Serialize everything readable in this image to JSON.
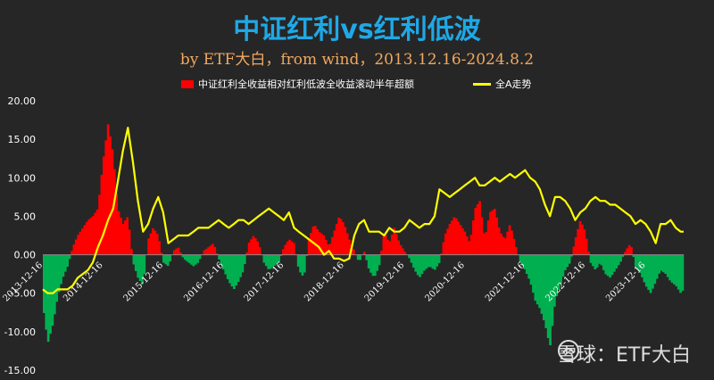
{
  "chart_data": {
    "type": "bar+line",
    "title": "中证红利vs红利低波",
    "subtitle": "by ETF大白，from wind，2013.12.16-2024.8.2",
    "legend": [
      "中证红利全收益相对红利低波全收益滚动半年超额",
      "全A走势"
    ],
    "ylim": [
      -15,
      20
    ],
    "yticks": [
      "20.00",
      "15.00",
      "10.00",
      "5.00",
      "0.00",
      "-5.00",
      "-10.00",
      "-15.00"
    ],
    "x_start": "2013-12-16",
    "x_end": "2024-08-02",
    "x_ticks": [
      "2013-12-16",
      "2014-12-16",
      "2015-12-16",
      "2016-12-16",
      "2017-12-16",
      "2018-12-16",
      "2019-12-16",
      "2020-12-16",
      "2021-12-16",
      "2022-12-16",
      "2023-12-16"
    ],
    "excess_series": {
      "name": "中证红利全收益相对红利低波全收益滚动半年超额",
      "points": [
        [
          "2013-12-16",
          -6.5
        ],
        [
          "2014-01-15",
          -11.5
        ],
        [
          "2014-02-15",
          -9.0
        ],
        [
          "2014-03-15",
          -5.5
        ],
        [
          "2014-04-15",
          -3.0
        ],
        [
          "2014-05-15",
          -1.5
        ],
        [
          "2014-06-15",
          1.0
        ],
        [
          "2014-07-15",
          2.5
        ],
        [
          "2014-08-15",
          3.5
        ],
        [
          "2014-09-15",
          4.5
        ],
        [
          "2014-10-15",
          5.0
        ],
        [
          "2014-11-15",
          6.0
        ],
        [
          "2014-12-15",
          12.0
        ],
        [
          "2015-01-15",
          17.0
        ],
        [
          "2015-02-15",
          13.0
        ],
        [
          "2015-03-15",
          6.0
        ],
        [
          "2015-04-15",
          4.0
        ],
        [
          "2015-05-15",
          5.0
        ],
        [
          "2015-06-15",
          -1.0
        ],
        [
          "2015-07-15",
          -3.0
        ],
        [
          "2015-08-15",
          -4.0
        ],
        [
          "2015-09-15",
          2.0
        ],
        [
          "2015-10-15",
          3.5
        ],
        [
          "2015-11-15",
          2.5
        ],
        [
          "2015-12-15",
          -1.0
        ],
        [
          "2016-01-15",
          -1.5
        ],
        [
          "2016-02-15",
          0.5
        ],
        [
          "2016-03-15",
          1.0
        ],
        [
          "2016-04-15",
          -0.5
        ],
        [
          "2016-05-15",
          -1.0
        ],
        [
          "2016-06-15",
          -1.5
        ],
        [
          "2016-07-15",
          -1.0
        ],
        [
          "2016-08-15",
          0.5
        ],
        [
          "2016-09-15",
          1.0
        ],
        [
          "2016-10-15",
          1.5
        ],
        [
          "2016-11-15",
          -0.5
        ],
        [
          "2016-12-15",
          -2.0
        ],
        [
          "2017-01-15",
          -3.5
        ],
        [
          "2017-02-15",
          -4.5
        ],
        [
          "2017-03-15",
          -3.5
        ],
        [
          "2017-04-15",
          -2.0
        ],
        [
          "2017-05-15",
          1.5
        ],
        [
          "2017-06-15",
          2.5
        ],
        [
          "2017-07-15",
          1.5
        ],
        [
          "2017-08-15",
          -1.0
        ],
        [
          "2017-09-15",
          -2.0
        ],
        [
          "2017-10-15",
          -1.5
        ],
        [
          "2017-11-15",
          -1.0
        ],
        [
          "2017-12-15",
          1.0
        ],
        [
          "2018-01-15",
          2.0
        ],
        [
          "2018-02-15",
          1.5
        ],
        [
          "2018-03-15",
          -2.0
        ],
        [
          "2018-04-15",
          -3.0
        ],
        [
          "2018-05-15",
          2.0
        ],
        [
          "2018-06-15",
          4.0
        ],
        [
          "2018-07-15",
          3.0
        ],
        [
          "2018-08-15",
          2.5
        ],
        [
          "2018-09-15",
          1.0
        ],
        [
          "2018-10-15",
          3.0
        ],
        [
          "2018-11-15",
          5.0
        ],
        [
          "2018-12-15",
          4.0
        ],
        [
          "2019-01-15",
          2.0
        ],
        [
          "2019-02-15",
          0.5
        ],
        [
          "2019-03-15",
          -1.0
        ],
        [
          "2019-04-15",
          0.5
        ],
        [
          "2019-05-15",
          -2.0
        ],
        [
          "2019-06-15",
          -3.0
        ],
        [
          "2019-07-15",
          -1.5
        ],
        [
          "2019-08-15",
          3.0
        ],
        [
          "2019-09-15",
          1.5
        ],
        [
          "2019-10-15",
          3.5
        ],
        [
          "2019-11-15",
          1.5
        ],
        [
          "2019-12-15",
          0.5
        ],
        [
          "2020-01-15",
          -0.5
        ],
        [
          "2020-02-15",
          -2.0
        ],
        [
          "2020-03-15",
          -3.0
        ],
        [
          "2020-04-15",
          -2.0
        ],
        [
          "2020-05-15",
          -1.5
        ],
        [
          "2020-06-15",
          -2.0
        ],
        [
          "2020-07-15",
          -1.0
        ],
        [
          "2020-08-15",
          2.5
        ],
        [
          "2020-09-15",
          4.0
        ],
        [
          "2020-10-15",
          5.0
        ],
        [
          "2020-11-15",
          4.0
        ],
        [
          "2020-12-15",
          3.0
        ],
        [
          "2021-01-15",
          1.5
        ],
        [
          "2021-02-15",
          6.0
        ],
        [
          "2021-03-15",
          7.0
        ],
        [
          "2021-04-15",
          2.0
        ],
        [
          "2021-05-15",
          5.5
        ],
        [
          "2021-06-15",
          6.0
        ],
        [
          "2021-07-15",
          3.0
        ],
        [
          "2021-08-15",
          2.0
        ],
        [
          "2021-09-15",
          4.0
        ],
        [
          "2021-10-15",
          1.5
        ],
        [
          "2021-11-15",
          -1.0
        ],
        [
          "2021-12-15",
          -2.0
        ],
        [
          "2022-01-15",
          -3.5
        ],
        [
          "2022-02-15",
          -6.0
        ],
        [
          "2022-03-15",
          -7.0
        ],
        [
          "2022-04-15",
          -9.0
        ],
        [
          "2022-05-15",
          -12.0
        ],
        [
          "2022-06-15",
          -6.0
        ],
        [
          "2022-07-15",
          -4.0
        ],
        [
          "2022-08-15",
          -2.0
        ],
        [
          "2022-09-15",
          -1.0
        ],
        [
          "2022-10-15",
          2.0
        ],
        [
          "2022-11-15",
          4.5
        ],
        [
          "2022-12-15",
          3.0
        ],
        [
          "2023-01-15",
          -1.0
        ],
        [
          "2023-02-15",
          -2.0
        ],
        [
          "2023-03-15",
          -1.0
        ],
        [
          "2023-04-15",
          -2.5
        ],
        [
          "2023-05-15",
          -3.0
        ],
        [
          "2023-06-15",
          -2.0
        ],
        [
          "2023-07-15",
          -1.0
        ],
        [
          "2023-08-15",
          0.5
        ],
        [
          "2023-09-15",
          1.5
        ],
        [
          "2023-10-15",
          -1.5
        ],
        [
          "2023-11-15",
          -2.5
        ],
        [
          "2023-12-15",
          -4.0
        ],
        [
          "2024-01-15",
          -5.0
        ],
        [
          "2024-02-15",
          -3.5
        ],
        [
          "2024-03-15",
          -2.0
        ],
        [
          "2024-04-15",
          -2.5
        ],
        [
          "2024-05-15",
          -3.5
        ],
        [
          "2024-06-15",
          -4.0
        ],
        [
          "2024-07-15",
          -5.0
        ],
        [
          "2024-08-02",
          -4.5
        ]
      ]
    },
    "index_series": {
      "name": "全A走势",
      "points": [
        [
          "2013-12-16",
          -4.5
        ],
        [
          "2014-01-15",
          -5.0
        ],
        [
          "2014-02-15",
          -5.0
        ],
        [
          "2014-03-15",
          -4.5
        ],
        [
          "2014-04-15",
          -4.5
        ],
        [
          "2014-05-15",
          -4.5
        ],
        [
          "2014-06-15",
          -4.0
        ],
        [
          "2014-07-15",
          -3.0
        ],
        [
          "2014-08-15",
          -2.5
        ],
        [
          "2014-09-15",
          -2.0
        ],
        [
          "2014-10-15",
          -1.0
        ],
        [
          "2014-11-15",
          1.0
        ],
        [
          "2014-12-15",
          2.5
        ],
        [
          "2015-01-15",
          4.5
        ],
        [
          "2015-02-15",
          6.0
        ],
        [
          "2015-03-15",
          9.5
        ],
        [
          "2015-04-15",
          13.5
        ],
        [
          "2015-05-15",
          16.5
        ],
        [
          "2015-06-15",
          12.0
        ],
        [
          "2015-07-15",
          7.0
        ],
        [
          "2015-08-15",
          3.0
        ],
        [
          "2015-09-15",
          4.0
        ],
        [
          "2015-10-15",
          6.0
        ],
        [
          "2015-11-15",
          7.5
        ],
        [
          "2015-12-15",
          5.5
        ],
        [
          "2016-01-15",
          1.5
        ],
        [
          "2016-02-15",
          2.0
        ],
        [
          "2016-03-15",
          2.5
        ],
        [
          "2016-04-15",
          2.5
        ],
        [
          "2016-05-15",
          2.5
        ],
        [
          "2016-06-15",
          3.0
        ],
        [
          "2016-07-15",
          3.5
        ],
        [
          "2016-08-15",
          3.5
        ],
        [
          "2016-09-15",
          3.5
        ],
        [
          "2016-10-15",
          4.0
        ],
        [
          "2016-11-15",
          4.5
        ],
        [
          "2016-12-15",
          4.0
        ],
        [
          "2017-01-15",
          3.5
        ],
        [
          "2017-02-15",
          4.0
        ],
        [
          "2017-03-15",
          4.5
        ],
        [
          "2017-04-15",
          4.5
        ],
        [
          "2017-05-15",
          4.0
        ],
        [
          "2017-06-15",
          4.5
        ],
        [
          "2017-07-15",
          5.0
        ],
        [
          "2017-08-15",
          5.5
        ],
        [
          "2017-09-15",
          6.0
        ],
        [
          "2017-10-15",
          5.5
        ],
        [
          "2017-11-15",
          5.0
        ],
        [
          "2017-12-15",
          4.5
        ],
        [
          "2018-01-15",
          5.5
        ],
        [
          "2018-02-15",
          3.5
        ],
        [
          "2018-03-15",
          3.0
        ],
        [
          "2018-04-15",
          2.5
        ],
        [
          "2018-05-15",
          2.0
        ],
        [
          "2018-06-15",
          1.5
        ],
        [
          "2018-07-15",
          1.0
        ],
        [
          "2018-08-15",
          0.0
        ],
        [
          "2018-09-15",
          0.5
        ],
        [
          "2018-10-15",
          -0.5
        ],
        [
          "2018-11-15",
          -0.5
        ],
        [
          "2018-12-15",
          -0.8
        ],
        [
          "2019-01-15",
          -0.5
        ],
        [
          "2019-02-15",
          2.5
        ],
        [
          "2019-03-15",
          4.0
        ],
        [
          "2019-04-15",
          4.5
        ],
        [
          "2019-05-15",
          3.0
        ],
        [
          "2019-06-15",
          3.0
        ],
        [
          "2019-07-15",
          3.0
        ],
        [
          "2019-08-15",
          2.5
        ],
        [
          "2019-09-15",
          3.5
        ],
        [
          "2019-10-15",
          3.0
        ],
        [
          "2019-11-15",
          3.0
        ],
        [
          "2019-12-15",
          3.5
        ],
        [
          "2020-01-15",
          4.5
        ],
        [
          "2020-02-15",
          4.0
        ],
        [
          "2020-03-15",
          3.5
        ],
        [
          "2020-04-15",
          4.0
        ],
        [
          "2020-05-15",
          4.0
        ],
        [
          "2020-06-15",
          5.0
        ],
        [
          "2020-07-15",
          8.5
        ],
        [
          "2020-08-15",
          8.0
        ],
        [
          "2020-09-15",
          7.5
        ],
        [
          "2020-10-15",
          8.0
        ],
        [
          "2020-11-15",
          8.5
        ],
        [
          "2020-12-15",
          9.0
        ],
        [
          "2021-01-15",
          9.5
        ],
        [
          "2021-02-15",
          10.0
        ],
        [
          "2021-03-15",
          9.0
        ],
        [
          "2021-04-15",
          9.0
        ],
        [
          "2021-05-15",
          9.5
        ],
        [
          "2021-06-15",
          10.0
        ],
        [
          "2021-07-15",
          9.5
        ],
        [
          "2021-08-15",
          10.0
        ],
        [
          "2021-09-15",
          10.5
        ],
        [
          "2021-10-15",
          10.0
        ],
        [
          "2021-11-15",
          10.5
        ],
        [
          "2021-12-15",
          11.0
        ],
        [
          "2022-01-15",
          10.0
        ],
        [
          "2022-02-15",
          9.5
        ],
        [
          "2022-03-15",
          8.5
        ],
        [
          "2022-04-15",
          6.5
        ],
        [
          "2022-05-15",
          5.0
        ],
        [
          "2022-06-15",
          7.5
        ],
        [
          "2022-07-15",
          7.5
        ],
        [
          "2022-08-15",
          7.0
        ],
        [
          "2022-09-15",
          6.0
        ],
        [
          "2022-10-15",
          4.5
        ],
        [
          "2022-11-15",
          5.5
        ],
        [
          "2022-12-15",
          6.0
        ],
        [
          "2023-01-15",
          7.0
        ],
        [
          "2023-02-15",
          7.5
        ],
        [
          "2023-03-15",
          7.0
        ],
        [
          "2023-04-15",
          7.0
        ],
        [
          "2023-05-15",
          6.5
        ],
        [
          "2023-06-15",
          6.5
        ],
        [
          "2023-07-15",
          6.0
        ],
        [
          "2023-08-15",
          5.5
        ],
        [
          "2023-09-15",
          5.0
        ],
        [
          "2023-10-15",
          4.0
        ],
        [
          "2023-11-15",
          4.5
        ],
        [
          "2023-12-15",
          4.0
        ],
        [
          "2024-01-15",
          3.0
        ],
        [
          "2024-02-15",
          1.5
        ],
        [
          "2024-03-15",
          4.0
        ],
        [
          "2024-04-15",
          4.0
        ],
        [
          "2024-05-15",
          4.5
        ],
        [
          "2024-06-15",
          3.5
        ],
        [
          "2024-07-15",
          3.0
        ],
        [
          "2024-08-02",
          3.0
        ]
      ]
    },
    "colors": {
      "positive": "#ff0000",
      "negative": "#00b050",
      "line": "#ffff00",
      "title": "#1fa8e6",
      "subtitle": "#f0a860"
    },
    "grid": false,
    "legend_position": "top"
  },
  "watermark": {
    "text": "雪球：ETF大白",
    "icon": "snowball-logo-icon"
  }
}
